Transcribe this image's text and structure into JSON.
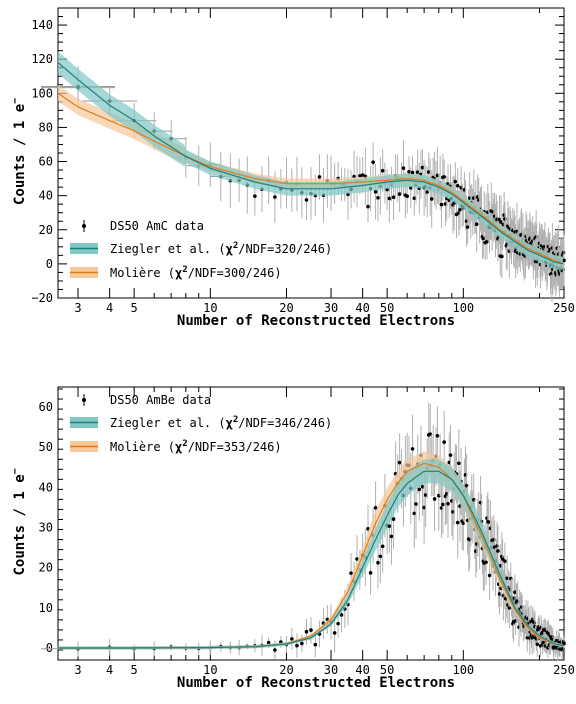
{
  "chart_data": [
    {
      "type": "scatter",
      "title": "",
      "xlabel": "Number of Reconstructed Electrons",
      "ylabel": "Counts / 1 e",
      "ylabel_sup": "−",
      "x_scale": "log",
      "xlim": [
        2.5,
        250
      ],
      "ylim": [
        -20,
        150
      ],
      "x_ticks": [
        3,
        4,
        5,
        10,
        20,
        30,
        40,
        50,
        100,
        250
      ],
      "x_tick_labels": [
        "3",
        "4",
        "5",
        "10",
        "20",
        "30",
        "40",
        "50",
        "100",
        "250"
      ],
      "y_ticks": [
        -20,
        0,
        20,
        40,
        60,
        80,
        100,
        120,
        140
      ],
      "y_tick_labels": [
        "−20",
        "0",
        "20",
        "40",
        "60",
        "80",
        "100",
        "120",
        "140"
      ],
      "legend_position": "bottom-left",
      "legend": {
        "data": "DS50 AmC data",
        "ziegler": "Ziegler et al.",
        "ziegler_fit": "/NDF=320/246)",
        "moliere": "Molière",
        "moliere_fit": "/NDF=300/246)",
        "chi_symbol": "χ",
        "chi_power": "2"
      },
      "colors": {
        "data": "#000000",
        "ziegler": "#1f7f7a",
        "ziegler_band": "#7fc8c4",
        "moliere": "#e07b1a",
        "moliere_band": "#f7c89a"
      },
      "series": [
        {
          "name": "Ziegler et al.",
          "x": [
            2.5,
            3,
            4,
            5,
            6,
            8,
            10,
            15,
            20,
            30,
            40,
            50,
            60,
            70,
            80,
            90,
            100,
            120,
            140,
            160,
            180,
            200,
            230,
            250
          ],
          "y": [
            118,
            108,
            93,
            84,
            75,
            63,
            56,
            48,
            44,
            44,
            46,
            48,
            49,
            48,
            45,
            41,
            36,
            27,
            19,
            13,
            8,
            5,
            1,
            0
          ],
          "band": 4
        },
        {
          "name": "Molière",
          "x": [
            2.5,
            3,
            4,
            5,
            6,
            8,
            10,
            15,
            20,
            30,
            40,
            50,
            60,
            70,
            80,
            90,
            100,
            120,
            140,
            160,
            180,
            200,
            230,
            250
          ],
          "y": [
            100,
            92,
            84,
            78,
            72,
            63,
            57,
            50,
            47,
            47,
            48,
            49,
            50,
            49,
            46,
            42,
            37,
            28,
            20,
            14,
            9,
            6,
            2,
            0
          ],
          "band": 3
        }
      ]
    },
    {
      "type": "scatter",
      "title": "",
      "xlabel": "Number of Reconstructed Electrons",
      "ylabel": "Counts / 1 e",
      "ylabel_sup": "−",
      "x_scale": "log",
      "xlim": [
        2.5,
        250
      ],
      "ylim": [
        -3,
        65
      ],
      "x_ticks": [
        3,
        4,
        5,
        10,
        20,
        30,
        40,
        50,
        100,
        250
      ],
      "x_tick_labels": [
        "3",
        "4",
        "5",
        "10",
        "20",
        "30",
        "40",
        "50",
        "100",
        "250"
      ],
      "y_ticks": [
        0,
        10,
        20,
        30,
        40,
        50,
        60
      ],
      "y_tick_labels": [
        "0",
        "10",
        "20",
        "30",
        "40",
        "50",
        "60"
      ],
      "legend_position": "top-left",
      "legend": {
        "data": "DS50 AmBe data",
        "ziegler": "Ziegler et al.",
        "ziegler_fit": "/NDF=346/246)",
        "moliere": "Molière",
        "moliere_fit": "/NDF=353/246)",
        "chi_symbol": "χ",
        "chi_power": "2"
      },
      "colors": {
        "data": "#000000",
        "ziegler": "#1f7f7a",
        "ziegler_band": "#7fc8c4",
        "moliere": "#e07b1a",
        "moliere_band": "#f7c89a"
      },
      "series": [
        {
          "name": "Ziegler et al.",
          "x": [
            2.5,
            5,
            10,
            15,
            20,
            25,
            30,
            35,
            40,
            45,
            50,
            55,
            60,
            70,
            80,
            90,
            100,
            110,
            120,
            140,
            160,
            180,
            200,
            230,
            250
          ],
          "y": [
            0,
            0,
            0.1,
            0.3,
            1,
            2.5,
            6,
            12,
            20,
            27,
            33,
            38,
            41,
            44,
            44,
            42,
            38,
            33,
            28,
            18,
            10,
            5.5,
            3,
            1,
            0.5
          ],
          "band": 2
        },
        {
          "name": "Molière",
          "x": [
            2.5,
            5,
            10,
            15,
            20,
            25,
            30,
            35,
            40,
            45,
            50,
            55,
            60,
            70,
            80,
            90,
            100,
            110,
            120,
            140,
            160,
            180,
            200,
            230,
            250
          ],
          "y": [
            0,
            0,
            0.1,
            0.3,
            1,
            3,
            7,
            14,
            23,
            31,
            37,
            41,
            44,
            46,
            45,
            42,
            38,
            32,
            27,
            17,
            9.5,
            5,
            2.5,
            1,
            0.5
          ],
          "band": 2
        }
      ]
    }
  ]
}
